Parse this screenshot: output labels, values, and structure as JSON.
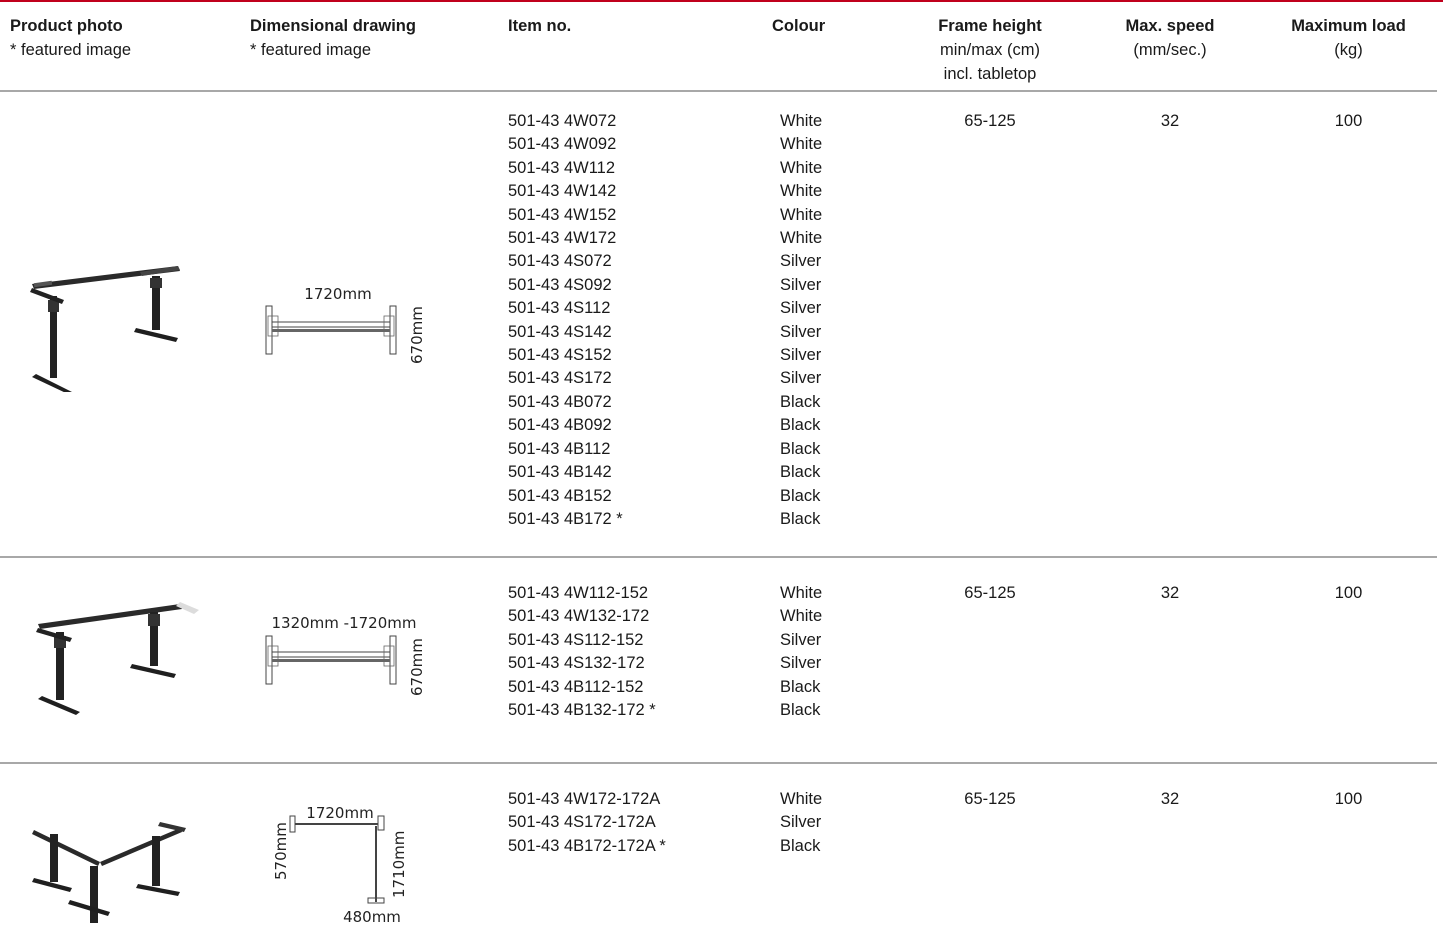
{
  "headers": {
    "photo": {
      "title": "Product photo",
      "sub": "* featured image"
    },
    "drawing": {
      "title": "Dimensional drawing",
      "sub": "* featured image"
    },
    "item": {
      "title": "Item no."
    },
    "colour": {
      "title": "Colour"
    },
    "frame": {
      "title": "Frame height",
      "sub1": "min/max (cm)",
      "sub2": "incl. tabletop"
    },
    "speed": {
      "title": "Max. speed",
      "sub": "(mm/sec.)"
    },
    "load": {
      "title": "Maximum load",
      "sub": "(kg)"
    }
  },
  "rows": [
    {
      "drawing": {
        "width_label": "1720mm",
        "height_label": "670mm"
      },
      "items": [
        "501-43 4W072",
        "501-43 4W092",
        "501-43 4W112",
        "501-43 4W142",
        "501-43 4W152",
        "501-43 4W172",
        "501-43 4S072",
        "501-43 4S092",
        "501-43 4S112",
        "501-43 4S142",
        "501-43 4S152",
        "501-43 4S172",
        "501-43 4B072",
        "501-43 4B092",
        "501-43 4B112",
        "501-43 4B142",
        "501-43 4B152",
        "501-43 4B172 *"
      ],
      "colours": [
        "White",
        "White",
        "White",
        "White",
        "White",
        "White",
        "Silver",
        "Silver",
        "Silver",
        "Silver",
        "Silver",
        "Silver",
        "Black",
        "Black",
        "Black",
        "Black",
        "Black",
        "Black"
      ],
      "frame_height": "65-125",
      "max_speed": "32",
      "max_load": "100"
    },
    {
      "drawing": {
        "width_label": "1320mm -1720mm",
        "height_label": "670mm"
      },
      "items": [
        "501-43 4W112-152",
        "501-43 4W132-172",
        "501-43 4S112-152",
        "501-43 4S132-172",
        "501-43 4B112-152",
        "501-43 4B132-172 *"
      ],
      "colours": [
        "White",
        "White",
        "Silver",
        "Silver",
        "Black",
        "Black"
      ],
      "frame_height": "65-125",
      "max_speed": "32",
      "max_load": "100"
    },
    {
      "drawing": {
        "width_label": "1720mm",
        "depth_label": "570mm",
        "length_label": "1710mm",
        "bottom_label": "480mm"
      },
      "items": [
        "501-43 4W172-172A",
        "501-43 4S172-172A",
        "501-43 4B172-172A *"
      ],
      "colours": [
        "White",
        "Silver",
        "Black"
      ],
      "frame_height": "65-125",
      "max_speed": "32",
      "max_load": "100"
    }
  ]
}
